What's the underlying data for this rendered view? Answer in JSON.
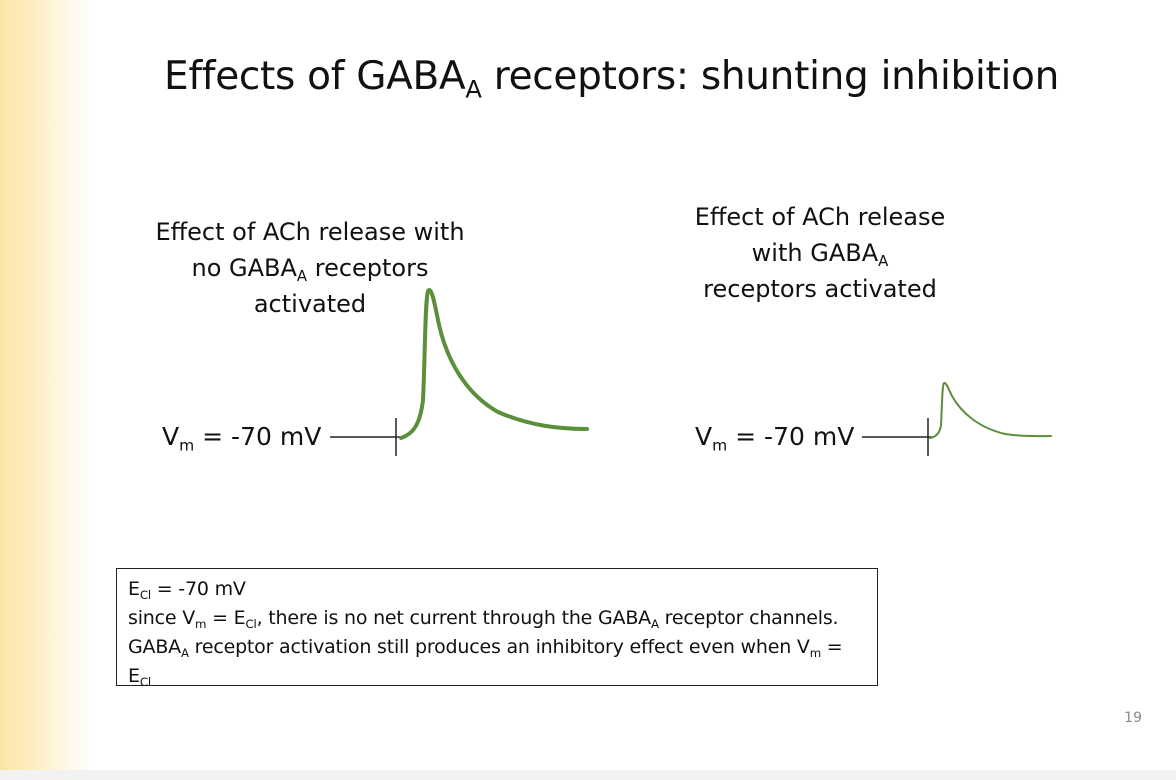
{
  "slide": {
    "title": {
      "main": "Effects of GABA",
      "sub": "A",
      "rest": " receptors: shunting inhibition"
    },
    "left_panel": {
      "caption": {
        "line1": "Effect of ACh release with",
        "line2_pre": "no GABA",
        "line2_sub": "A",
        "line2_post": " receptors",
        "line3": "activated"
      },
      "vm_label": {
        "v": "V",
        "sub": "m",
        "rest": " = -70 mV"
      }
    },
    "right_panel": {
      "caption": {
        "line1": "Effect of ACh release",
        "line2_pre": "with GABA",
        "line2_sub": "A",
        "line3": "receptors activated"
      },
      "vm_label": {
        "v": "V",
        "sub": "m",
        "rest": " = -70 mV"
      }
    },
    "note": {
      "l1_e": "E",
      "l1_sub": "Cl",
      "l1_rest": " = -70 mV",
      "l2_a": "since V",
      "l2_sub1": "m",
      "l2_b": " = E",
      "l2_sub2": "Cl",
      "l2_c": ", there is no net current through the GABA",
      "l2_sub3": "A",
      "l2_d": " receptor channels.",
      "l3_a": "GABA",
      "l3_sub1": "A",
      "l3_b": " receptor activation still produces an inhibitory effect even when V",
      "l3_sub2": "m",
      "l3_c": " =",
      "l4_e": "E",
      "l4_sub": "Cl"
    },
    "page_number": "19",
    "colors": {
      "trace": "#5b8f3a",
      "axis": "#222222",
      "accent_gradient": "#fbe6a8"
    }
  }
}
